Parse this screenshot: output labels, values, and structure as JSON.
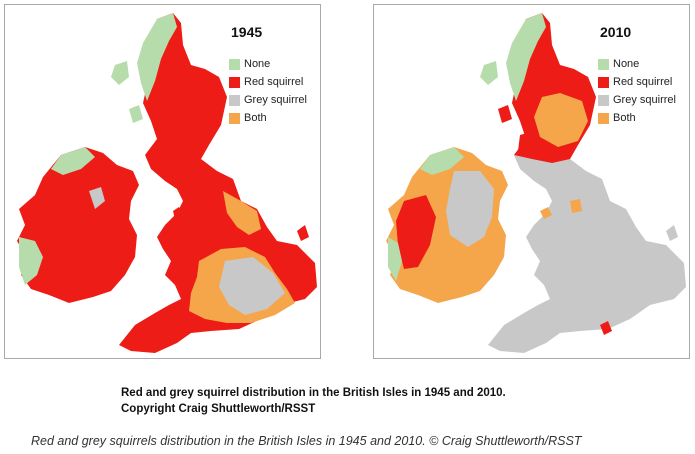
{
  "maps": [
    {
      "year": "1945",
      "legend": [
        {
          "label": "None",
          "color": "#b7dcab"
        },
        {
          "label": "Red squirrel",
          "color": "#ee1c16"
        },
        {
          "label": "Grey squirrel",
          "color": "#c8c8c8"
        },
        {
          "label": "Both",
          "color": "#f5a64b"
        }
      ]
    },
    {
      "year": "2010",
      "legend": [
        {
          "label": "None",
          "color": "#b7dcab"
        },
        {
          "label": "Red squirrel",
          "color": "#ee1c16"
        },
        {
          "label": "Grey squirrel",
          "color": "#c8c8c8"
        },
        {
          "label": "Both",
          "color": "#f5a64b"
        }
      ]
    }
  ],
  "figure_caption": {
    "line1": "Red and grey squirrel distribution in the British Isles in 1945 and 2010.",
    "line2": "Copyright Craig Shuttleworth/RSST"
  },
  "caption": "Red and grey squirrels distribution in the British Isles in 1945 and 2010. © Craig Shuttleworth/RSST"
}
